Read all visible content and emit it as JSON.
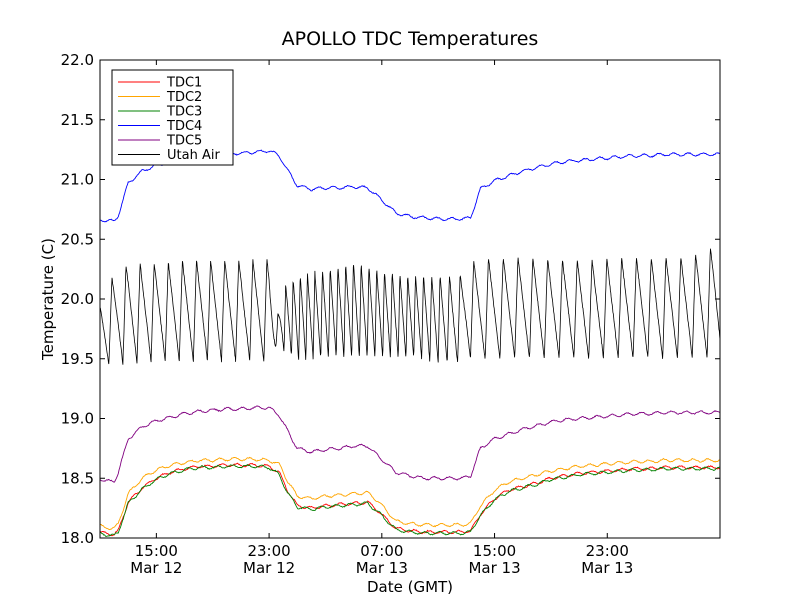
{
  "chart_data": {
    "type": "line",
    "title": "APOLLO TDC Temperatures",
    "xlabel": "Date (GMT)",
    "ylabel": "Temperature (C)",
    "ylim": [
      18.0,
      22.0
    ],
    "xlim_hours": [
      0,
      44
    ],
    "grid": false,
    "legend_position": "top-left",
    "y_ticks": [
      {
        "value": 18.0,
        "label": "18.0"
      },
      {
        "value": 18.5,
        "label": "18.5"
      },
      {
        "value": 19.0,
        "label": "19.0"
      },
      {
        "value": 19.5,
        "label": "19.5"
      },
      {
        "value": 20.0,
        "label": "20.0"
      },
      {
        "value": 20.5,
        "label": "20.5"
      },
      {
        "value": 21.0,
        "label": "21.0"
      },
      {
        "value": 21.5,
        "label": "21.5"
      },
      {
        "value": 22.0,
        "label": "22.0"
      }
    ],
    "x_ticks": [
      {
        "hour": 4,
        "time": "15:00",
        "date": "Mar 12"
      },
      {
        "hour": 12,
        "time": "23:00",
        "date": "Mar 12"
      },
      {
        "hour": 20,
        "time": "07:00",
        "date": "Mar 13"
      },
      {
        "hour": 28,
        "time": "15:00",
        "date": "Mar 13"
      },
      {
        "hour": 36,
        "time": "23:00",
        "date": "Mar 13"
      }
    ],
    "series": [
      {
        "name": "TDC1",
        "color": "#ff0000",
        "kind": "smooth",
        "x": [
          0,
          0.3,
          1,
          1.3,
          2,
          3,
          4,
          5,
          6,
          7,
          8,
          9,
          10,
          11,
          12,
          12.7,
          13.3,
          14,
          15,
          16,
          17,
          18,
          19,
          19.8,
          21,
          22,
          23,
          24,
          25,
          25.7,
          26.3,
          27,
          28,
          29,
          30,
          31,
          32,
          33,
          34,
          35,
          36,
          37,
          38,
          39,
          40,
          41,
          42,
          43,
          44
        ],
        "values": [
          18.05,
          18.04,
          18.03,
          18.06,
          18.3,
          18.42,
          18.5,
          18.55,
          18.58,
          18.6,
          18.6,
          18.61,
          18.61,
          18.61,
          18.6,
          18.55,
          18.4,
          18.27,
          18.25,
          18.27,
          18.28,
          18.29,
          18.3,
          18.22,
          18.08,
          18.06,
          18.05,
          18.05,
          18.05,
          18.05,
          18.06,
          18.2,
          18.33,
          18.4,
          18.43,
          18.46,
          18.5,
          18.52,
          18.54,
          18.55,
          18.56,
          18.57,
          18.58,
          18.58,
          18.59,
          18.59,
          18.59,
          18.59,
          18.59
        ]
      },
      {
        "name": "TDC2",
        "color": "#ffa500",
        "kind": "smooth",
        "x": [
          0,
          0.3,
          1,
          1.3,
          2,
          3,
          4,
          5,
          6,
          7,
          8,
          9,
          10,
          11,
          12,
          12.7,
          13.3,
          14,
          15,
          16,
          17,
          18,
          19,
          19.8,
          21,
          22,
          23,
          24,
          25,
          25.7,
          26.3,
          27,
          28,
          29,
          30,
          31,
          32,
          33,
          34,
          35,
          36,
          37,
          38,
          39,
          40,
          41,
          42,
          43,
          44
        ],
        "values": [
          18.1,
          18.09,
          18.08,
          18.12,
          18.37,
          18.5,
          18.57,
          18.61,
          18.63,
          18.65,
          18.65,
          18.66,
          18.66,
          18.66,
          18.65,
          18.62,
          18.48,
          18.35,
          18.33,
          18.35,
          18.36,
          18.37,
          18.38,
          18.3,
          18.14,
          18.12,
          18.11,
          18.11,
          18.11,
          18.11,
          18.12,
          18.27,
          18.4,
          18.47,
          18.5,
          18.53,
          18.56,
          18.58,
          18.6,
          18.61,
          18.62,
          18.63,
          18.64,
          18.64,
          18.65,
          18.65,
          18.65,
          18.65,
          18.65
        ]
      },
      {
        "name": "TDC3",
        "color": "#008000",
        "kind": "smooth",
        "x": [
          0,
          0.3,
          1,
          1.3,
          2,
          3,
          4,
          5,
          6,
          7,
          8,
          9,
          10,
          11,
          12,
          12.7,
          13.3,
          14,
          15,
          16,
          17,
          18,
          19,
          19.8,
          21,
          22,
          23,
          24,
          25,
          25.7,
          26.3,
          27,
          28,
          29,
          30,
          31,
          32,
          33,
          34,
          35,
          36,
          37,
          38,
          39,
          40,
          41,
          42,
          43,
          44
        ],
        "values": [
          18.04,
          18.03,
          18.02,
          18.05,
          18.29,
          18.41,
          18.49,
          18.54,
          18.57,
          18.59,
          18.59,
          18.6,
          18.6,
          18.6,
          18.59,
          18.53,
          18.38,
          18.26,
          18.24,
          18.26,
          18.27,
          18.28,
          18.29,
          18.21,
          18.07,
          18.05,
          18.04,
          18.04,
          18.04,
          18.04,
          18.05,
          18.19,
          18.32,
          18.39,
          18.42,
          18.45,
          18.49,
          18.51,
          18.53,
          18.54,
          18.55,
          18.56,
          18.57,
          18.57,
          18.58,
          18.58,
          18.58,
          18.58,
          18.58
        ]
      },
      {
        "name": "TDC4",
        "color": "#0000ff",
        "kind": "smooth",
        "x": [
          0,
          0.3,
          1,
          1.3,
          2,
          3,
          4,
          5,
          6,
          7,
          8,
          9,
          10,
          11,
          12,
          12.7,
          13.3,
          14,
          15,
          16,
          17,
          18,
          19,
          19.8,
          21,
          22,
          23,
          24,
          25,
          25.7,
          26.3,
          27,
          28,
          29,
          30,
          31,
          32,
          33,
          34,
          35,
          36,
          37,
          38,
          39,
          40,
          41,
          42,
          43,
          44
        ],
        "values": [
          20.66,
          20.66,
          20.65,
          20.7,
          20.97,
          21.07,
          21.12,
          21.15,
          21.18,
          21.2,
          21.21,
          21.22,
          21.22,
          21.23,
          21.24,
          21.2,
          21.08,
          20.95,
          20.92,
          20.93,
          20.93,
          20.94,
          20.93,
          20.85,
          20.72,
          20.69,
          20.68,
          20.67,
          20.67,
          20.67,
          20.68,
          20.92,
          20.99,
          21.03,
          21.07,
          21.1,
          21.13,
          21.15,
          21.16,
          21.17,
          21.18,
          21.19,
          21.2,
          21.2,
          21.21,
          21.21,
          21.21,
          21.21,
          21.21
        ]
      },
      {
        "name": "TDC5",
        "color": "#800080",
        "kind": "smooth",
        "x": [
          0,
          0.3,
          1,
          1.3,
          2,
          3,
          4,
          5,
          6,
          7,
          8,
          9,
          10,
          11,
          12,
          12.7,
          13.3,
          14,
          15,
          16,
          17,
          18,
          19,
          19.8,
          21,
          22,
          23,
          24,
          25,
          25.7,
          26.3,
          27,
          28,
          29,
          30,
          31,
          32,
          33,
          34,
          35,
          36,
          37,
          38,
          39,
          40,
          41,
          42,
          43,
          44
        ],
        "values": [
          18.5,
          18.48,
          18.47,
          18.55,
          18.83,
          18.93,
          18.98,
          19.01,
          19.04,
          19.06,
          19.07,
          19.08,
          19.08,
          19.09,
          19.09,
          19.03,
          18.9,
          18.75,
          18.72,
          18.74,
          18.75,
          18.77,
          18.77,
          18.68,
          18.55,
          18.52,
          18.5,
          18.5,
          18.5,
          18.5,
          18.52,
          18.75,
          18.83,
          18.87,
          18.91,
          18.94,
          18.97,
          18.99,
          19.0,
          19.01,
          19.02,
          19.03,
          19.04,
          19.04,
          19.05,
          19.05,
          19.05,
          19.05,
          19.05
        ]
      },
      {
        "name": "Utah Air",
        "color": "#000000",
        "kind": "oscillating",
        "x": [
          0,
          1,
          2,
          4,
          6,
          8,
          10,
          12,
          12.5,
          13,
          14,
          16,
          18,
          20,
          22,
          24,
          25.5,
          26,
          27,
          29,
          31,
          33,
          35,
          37,
          39,
          41,
          43,
          44
        ],
        "min": [
          19.45,
          19.45,
          19.46,
          19.48,
          19.48,
          19.48,
          19.48,
          19.48,
          19.6,
          19.55,
          19.48,
          19.5,
          19.5,
          19.5,
          19.5,
          19.46,
          19.46,
          19.5,
          19.48,
          19.5,
          19.5,
          19.5,
          19.5,
          19.5,
          19.5,
          19.5,
          19.5,
          19.5
        ],
        "max": [
          20.05,
          20.2,
          20.3,
          20.3,
          20.33,
          20.33,
          20.33,
          20.33,
          19.8,
          20.1,
          20.2,
          20.25,
          20.32,
          20.25,
          20.2,
          20.2,
          20.2,
          20.3,
          20.35,
          20.35,
          20.35,
          20.33,
          20.33,
          20.35,
          20.35,
          20.35,
          20.4,
          20.5
        ],
        "period_hours": [
          1.0,
          1.0,
          1.0,
          1.0,
          1.0,
          1.0,
          1.0,
          1.0,
          0.6,
          0.55,
          0.5,
          0.55,
          0.55,
          0.55,
          0.55,
          0.6,
          0.8,
          1.0,
          1.05,
          1.05,
          1.05,
          1.05,
          1.05,
          1.05,
          1.05,
          1.05,
          1.05,
          1.05
        ]
      }
    ]
  }
}
